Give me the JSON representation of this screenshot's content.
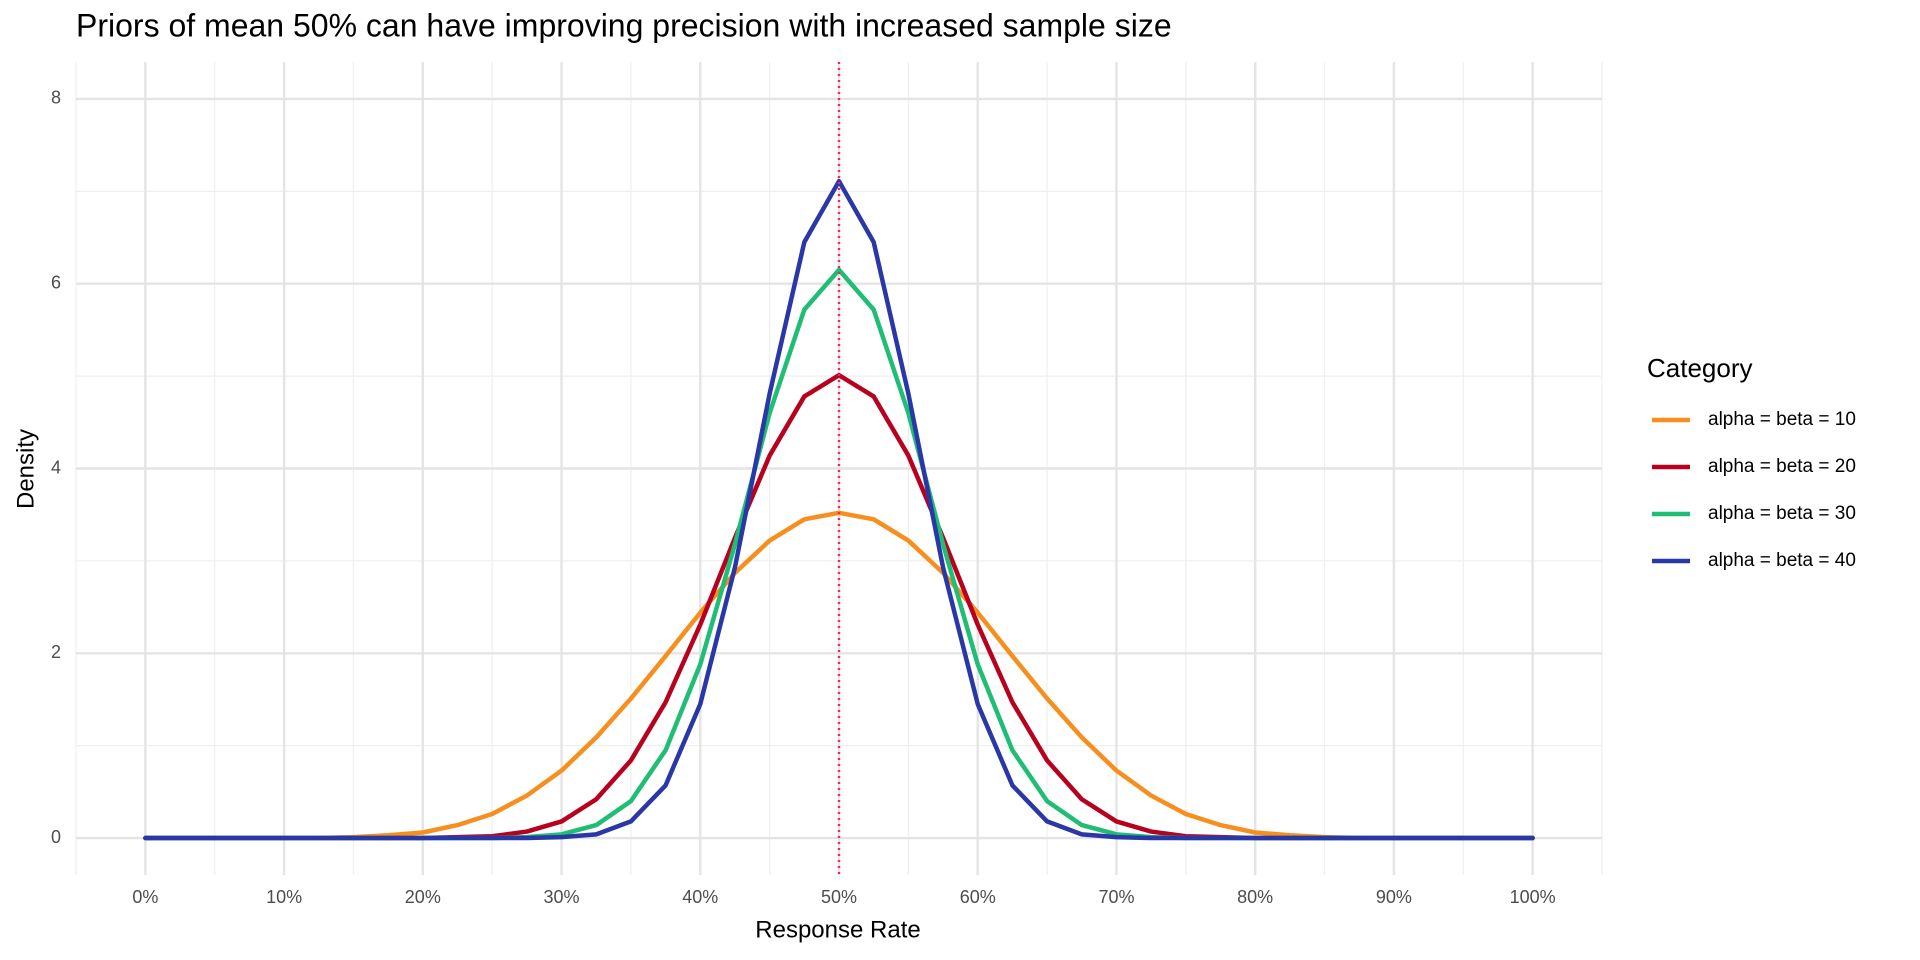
{
  "chart_data": {
    "type": "line",
    "title": "Priors of mean 50% can have improving precision with increased sample size",
    "x_label": "Response Rate",
    "y_label": "Density",
    "legend_title": "Category",
    "legend_position": "right",
    "grid": true,
    "x": [
      0,
      0.025,
      0.05,
      0.075,
      0.1,
      0.125,
      0.15,
      0.175,
      0.2,
      0.225,
      0.25,
      0.275,
      0.3,
      0.325,
      0.35,
      0.375,
      0.4,
      0.425,
      0.45,
      0.475,
      0.5,
      0.525,
      0.55,
      0.575,
      0.6,
      0.625,
      0.65,
      0.675,
      0.7,
      0.725,
      0.75,
      0.775,
      0.8,
      0.825,
      0.85,
      0.875,
      0.9,
      0.925,
      0.95,
      0.975,
      1
    ],
    "series": [
      {
        "name": "alpha = beta = 10",
        "color": "#f78f1e",
        "values": [
          0,
          0,
          0,
          0,
          0,
          0,
          0.01,
          0.03,
          0.06,
          0.14,
          0.26,
          0.46,
          0.73,
          1.09,
          1.51,
          1.97,
          2.44,
          2.87,
          3.22,
          3.45,
          3.52,
          3.45,
          3.22,
          2.87,
          2.44,
          1.97,
          1.51,
          1.09,
          0.73,
          0.46,
          0.26,
          0.14,
          0.06,
          0.03,
          0.01,
          0,
          0,
          0,
          0,
          0,
          0
        ]
      },
      {
        "name": "alpha = beta = 20",
        "color": "#b8001f",
        "values": [
          0,
          0,
          0,
          0,
          0,
          0,
          0,
          0,
          0,
          0.01,
          0.02,
          0.07,
          0.18,
          0.42,
          0.84,
          1.47,
          2.31,
          3.25,
          4.14,
          4.78,
          5.01,
          4.78,
          4.14,
          3.25,
          2.31,
          1.47,
          0.84,
          0.42,
          0.18,
          0.07,
          0.02,
          0.01,
          0,
          0,
          0,
          0,
          0,
          0,
          0,
          0,
          0
        ]
      },
      {
        "name": "alpha = beta = 30",
        "color": "#1fbe74",
        "values": [
          0,
          0,
          0,
          0,
          0,
          0,
          0,
          0,
          0,
          0,
          0,
          0.01,
          0.04,
          0.14,
          0.4,
          0.95,
          1.88,
          3.18,
          4.6,
          5.72,
          6.15,
          5.72,
          4.6,
          3.18,
          1.88,
          0.95,
          0.4,
          0.14,
          0.04,
          0.01,
          0,
          0,
          0,
          0,
          0,
          0,
          0,
          0,
          0,
          0,
          0
        ]
      },
      {
        "name": "alpha = beta = 40",
        "color": "#2a37a6",
        "values": [
          0,
          0,
          0,
          0,
          0,
          0,
          0,
          0,
          0,
          0,
          0,
          0,
          0.01,
          0.04,
          0.18,
          0.57,
          1.45,
          2.93,
          4.81,
          6.45,
          7.11,
          6.45,
          4.81,
          2.93,
          1.45,
          0.57,
          0.18,
          0.04,
          0.01,
          0,
          0,
          0,
          0,
          0,
          0,
          0,
          0,
          0,
          0,
          0,
          0
        ]
      }
    ],
    "vline": {
      "value": 0.5,
      "color": "#ff1f5b"
    },
    "xlim": [
      -0.05,
      1.05
    ],
    "xticks": [
      {
        "value": 0,
        "label": "0%"
      },
      {
        "value": 0.1,
        "label": "10%"
      },
      {
        "value": 0.2,
        "label": "20%"
      },
      {
        "value": 0.3,
        "label": "30%"
      },
      {
        "value": 0.4,
        "label": "40%"
      },
      {
        "value": 0.5,
        "label": "50%"
      },
      {
        "value": 0.6,
        "label": "60%"
      },
      {
        "value": 0.7,
        "label": "70%"
      },
      {
        "value": 0.8,
        "label": "80%"
      },
      {
        "value": 0.9,
        "label": "90%"
      },
      {
        "value": 1,
        "label": "100%"
      }
    ],
    "ylim": [
      -0.4,
      8.4
    ],
    "yticks": [
      0,
      2,
      4,
      6,
      8
    ]
  }
}
